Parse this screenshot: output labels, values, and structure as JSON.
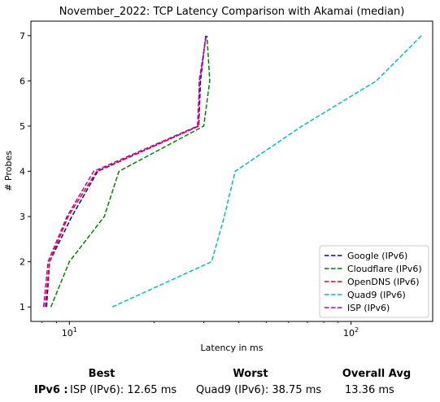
{
  "chart_data": {
    "type": "line",
    "title": "November_2022: TCP Latency Comparison with Akamai (median)",
    "xlabel": "Latency in ms",
    "ylabel": "# Probes",
    "xscale": "log",
    "xlim": [
      7.3,
      195
    ],
    "ylim": [
      0.68,
      7.32
    ],
    "xticks": [
      {
        "value": 10,
        "label": "10^1"
      },
      {
        "value": 100,
        "label": "10^2"
      }
    ],
    "yticks": [
      1,
      2,
      3,
      4,
      5,
      6,
      7
    ],
    "legend": "bottom-right",
    "grid": false,
    "series": [
      {
        "name": "Google (IPv6)",
        "color": "#0000bf",
        "points": [
          [
            8.3,
            1
          ],
          [
            8.5,
            2
          ],
          [
            10.2,
            3
          ],
          [
            12.6,
            4
          ],
          [
            28.8,
            5
          ],
          [
            29.2,
            6
          ],
          [
            30.5,
            7
          ]
        ]
      },
      {
        "name": "Cloudflare (IPv6)",
        "color": "#008000",
        "points": [
          [
            8.6,
            1
          ],
          [
            10.0,
            2
          ],
          [
            13.3,
            3
          ],
          [
            15.0,
            4
          ],
          [
            30.0,
            5
          ],
          [
            31.5,
            6
          ],
          [
            30.8,
            7
          ]
        ]
      },
      {
        "name": "OpenDNS (IPv6)",
        "color": "#ff0000",
        "points": [
          [
            8.2,
            1
          ],
          [
            8.5,
            2
          ],
          [
            9.9,
            3
          ],
          [
            12.5,
            4
          ],
          [
            28.8,
            5
          ],
          [
            28.9,
            6
          ],
          [
            30.6,
            7
          ]
        ]
      },
      {
        "name": "Quad9 (IPv6)",
        "color": "#00bfbf",
        "points": [
          [
            14.2,
            1
          ],
          [
            32.0,
            2
          ],
          [
            35.5,
            3
          ],
          [
            38.8,
            4
          ],
          [
            67.0,
            5
          ],
          [
            123.0,
            6
          ],
          [
            178.0,
            7
          ]
        ]
      },
      {
        "name": "ISP (IPv6)",
        "color": "#bf00bf",
        "points": [
          [
            8.1,
            1
          ],
          [
            8.4,
            2
          ],
          [
            9.8,
            3
          ],
          [
            12.2,
            4
          ],
          [
            28.5,
            5
          ],
          [
            29.0,
            6
          ],
          [
            30.6,
            7
          ]
        ]
      }
    ]
  },
  "summary": {
    "best_header": "Best",
    "worst_header": "Worst",
    "avg_header": "Overall Avg",
    "row_label": "IPv6 :",
    "best_value": "ISP (IPv6): 12.65 ms",
    "worst_value": "Quad9 (IPv6): 38.75 ms",
    "avg_value": "13.36 ms"
  }
}
